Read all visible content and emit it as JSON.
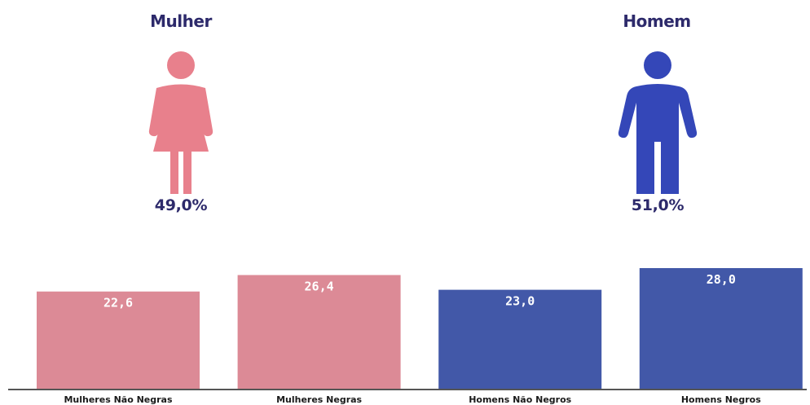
{
  "gender_summary": {
    "female": {
      "label": "Mulher",
      "percent": "49,0%",
      "icon": "woman-icon",
      "color": "#e8808c"
    },
    "male": {
      "label": "Homem",
      "percent": "51,0%",
      "icon": "man-icon",
      "color": "#3447b8"
    }
  },
  "chart_data": {
    "type": "bar",
    "categories": [
      "Mulheres Não Negras",
      "Mulheres Negras",
      "Homens Não Negros",
      "Homens Negros"
    ],
    "values": [
      22.6,
      26.4,
      23.0,
      28.0
    ],
    "value_labels": [
      "22,6",
      "26,4",
      "23,0",
      "28,0"
    ],
    "colors": [
      "#dc8a96",
      "#dc8a96",
      "#4258a8",
      "#4258a8"
    ],
    "ylim": [
      0,
      28.0
    ],
    "grid": false,
    "title": "",
    "xlabel": "",
    "ylabel": ""
  }
}
